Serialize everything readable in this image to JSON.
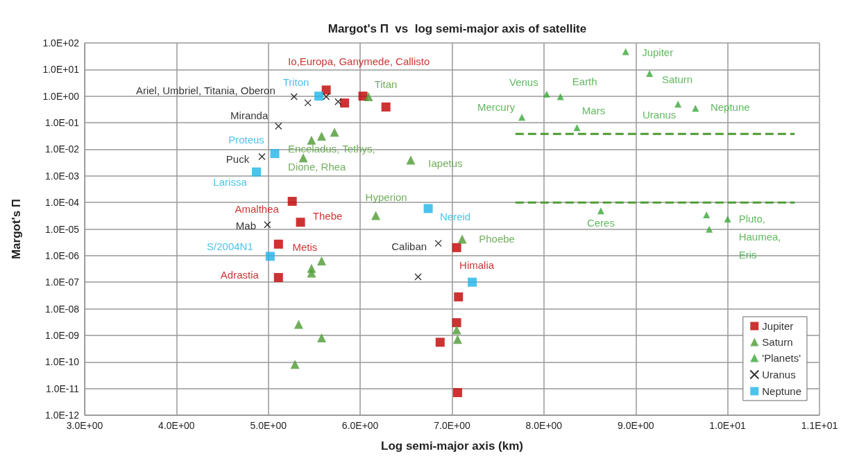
{
  "chart_data": {
    "type": "scatter",
    "title": "Margot's Π  vs  log semi-major axis of satellite",
    "xlabel": "Log semi-major axis (km)",
    "ylabel": "Margot's Π",
    "log": "y",
    "grid": true,
    "legend": "bottom right",
    "xlim": [
      3,
      11
    ],
    "xticks": [
      {
        "value": 3,
        "label": "3.0E+00"
      },
      {
        "value": 4,
        "label": "4.0E+00"
      },
      {
        "value": 5,
        "label": "5.0E+00"
      },
      {
        "value": 6,
        "label": "6.0E+00"
      },
      {
        "value": 7,
        "label": "7.0E+00"
      },
      {
        "value": 8,
        "label": "8.0E+00"
      },
      {
        "value": 9,
        "label": "9.0E+00"
      },
      {
        "value": 10,
        "label": "1.0E+01"
      },
      {
        "value": 11,
        "label": "1.1E+01"
      }
    ],
    "ylim": [
      1e-12,
      100
    ],
    "yticks": [
      {
        "value": 1e-12,
        "label": "1.0E-12"
      },
      {
        "value": 1e-11,
        "label": "1.0E-11"
      },
      {
        "value": 1e-10,
        "label": "1.0E-10"
      },
      {
        "value": 1e-09,
        "label": "1.0E-09"
      },
      {
        "value": 1e-08,
        "label": "1.0E-08"
      },
      {
        "value": 1e-07,
        "label": "1.0E-07"
      },
      {
        "value": 1e-06,
        "label": "1.0E-06"
      },
      {
        "value": 1e-05,
        "label": "1.0E-05"
      },
      {
        "value": 0.0001,
        "label": "1.0E-04"
      },
      {
        "value": 0.001,
        "label": "1.0E-03"
      },
      {
        "value": 0.01,
        "label": "1.0E-02"
      },
      {
        "value": 0.1,
        "label": "1.0E-01"
      },
      {
        "value": 1,
        "label": "1.0E+00"
      },
      {
        "value": 10,
        "label": "1.0E+01"
      },
      {
        "value": 100,
        "label": "1.0E+02"
      }
    ],
    "series": [
      {
        "name": "Jupiter",
        "marker": "square",
        "color": "#c00000",
        "x": [
          5.63,
          6.03,
          5.83,
          6.28,
          5.26,
          5.35,
          5.11,
          5.11,
          7.05,
          7.07,
          7.05,
          6.87,
          7.06
        ],
        "values": [
          1.7,
          1.0,
          0.55,
          0.39,
          0.00011,
          1.8e-05,
          2.7e-06,
          1.5e-07,
          2e-06,
          2.8e-08,
          3e-09,
          5.5e-10,
          7e-12
        ],
        "value_labels": [
          "Io,Europa, Ganymede, Callisto",
          null,
          null,
          null,
          "Amalthea",
          "Thebe",
          "Metis",
          "Adrastia",
          "Himalia",
          null,
          null,
          null,
          null
        ]
      },
      {
        "name": "Saturn",
        "marker": "triangle",
        "color": "#4e9a33",
        "x": [
          6.09,
          5.47,
          5.58,
          5.72,
          5.38,
          6.55,
          6.17,
          7.11,
          5.58,
          5.47,
          5.47,
          5.33,
          5.58,
          5.29,
          7.05,
          7.06
        ],
        "values": [
          0.95,
          0.022,
          0.031,
          0.044,
          0.0048,
          0.0039,
          3.2e-05,
          4.2e-06,
          6.3e-07,
          3.3e-07,
          2.2e-07,
          2.6e-09,
          8.1e-10,
          8.1e-11,
          1.6e-09,
          7e-10
        ],
        "value_labels": [
          "Titan",
          null,
          null,
          null,
          "Enceladus, Tethys, Dione, Rhea",
          "Iapetus",
          "Hyperion",
          "Phoebe",
          null,
          null,
          null,
          null,
          null,
          null,
          null,
          null
        ]
      },
      {
        "name": "'Planets'",
        "marker": "triangle",
        "color": "#3aa83a",
        "x": [
          8.89,
          9.15,
          8.03,
          8.18,
          7.76,
          8.36,
          9.46,
          9.65,
          8.62,
          9.77,
          10.0,
          9.8
        ],
        "values": [
          47,
          7.1,
          1.2,
          0.96,
          0.16,
          0.065,
          0.5,
          0.35,
          4.8e-05,
          3.4e-05,
          2.4e-05,
          9.8e-06
        ],
        "value_labels": [
          "Jupiter",
          "Saturn",
          "Venus",
          "Earth",
          "Mercury",
          "Mars",
          "Uranus",
          "Neptune",
          "Ceres",
          null,
          "Pluto, Haumea, Eris",
          null
        ]
      },
      {
        "name": "Uranus",
        "marker": "cross",
        "color": "#000000",
        "x": [
          5.28,
          5.43,
          5.63,
          5.76,
          5.11,
          4.93,
          4.99,
          6.85,
          6.63
        ],
        "values": [
          0.95,
          0.56,
          0.95,
          0.62,
          0.074,
          0.0053,
          1.45e-05,
          2.9e-06,
          1.6e-07
        ],
        "value_labels": [
          "Ariel, Umbriel, Titania, Oberon",
          null,
          null,
          null,
          "Miranda",
          "Puck",
          "Mab",
          "Caliban",
          null
        ]
      },
      {
        "name": "Neptune",
        "marker": "square",
        "color": "#1eb4e8",
        "x": [
          5.55,
          5.07,
          4.87,
          6.74,
          5.02,
          7.22
        ],
        "values": [
          1.0,
          0.0069,
          0.0014,
          5.9e-05,
          9.4e-07,
          1e-07
        ],
        "value_labels": [
          "Triton",
          "Proteus",
          "Larissa",
          "Nereid",
          "S/2004N1",
          null
        ]
      },
      {
        "type": "line",
        "marker": "none",
        "line_style": "dashed",
        "color": "#4e9a33",
        "x": [
          7.69,
          10.73
        ],
        "values": [
          0.038,
          0.038
        ]
      },
      {
        "type": "line",
        "marker": "none",
        "line_style": "dashed",
        "color": "#4e9a33",
        "x": [
          7.69,
          10.73
        ],
        "values": [
          0.0001,
          0.0001
        ]
      }
    ]
  }
}
